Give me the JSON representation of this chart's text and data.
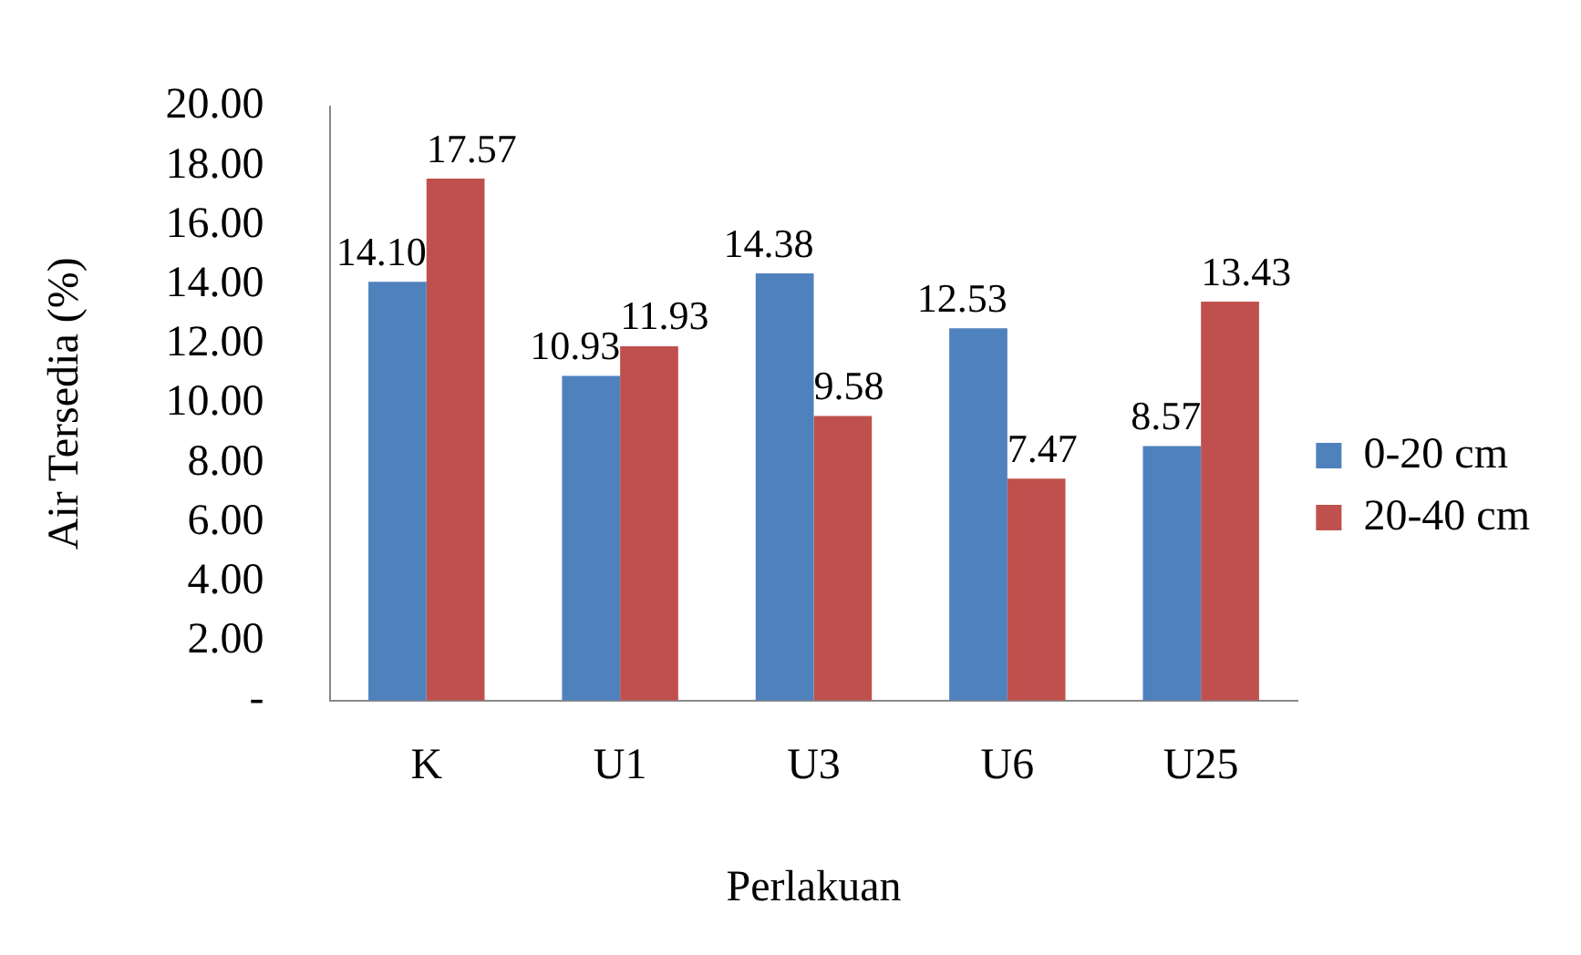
{
  "chart_data": {
    "type": "bar",
    "xlabel": "Perlakuan",
    "ylabel": "Air Tersedia (%)",
    "categories": [
      "K",
      "U1",
      "U3",
      "U6",
      "U25"
    ],
    "series": [
      {
        "name": "0-20 cm",
        "color": "#4f81bd",
        "values": [
          14.1,
          10.93,
          14.38,
          12.53,
          8.57
        ],
        "value_labels": [
          "14.10",
          "10.93",
          "14.38",
          "12.53",
          "8.57"
        ]
      },
      {
        "name": "20-40 cm",
        "color": "#c0504d",
        "values": [
          17.57,
          11.93,
          9.58,
          7.47,
          13.43
        ],
        "value_labels": [
          "17.57",
          "11.93",
          "9.58",
          "7.47",
          "13.43"
        ]
      }
    ],
    "ylim": [
      0,
      20
    ],
    "yticks": [
      {
        "value": 0,
        "label": "-"
      },
      {
        "value": 2,
        "label": "2.00"
      },
      {
        "value": 4,
        "label": "4.00"
      },
      {
        "value": 6,
        "label": "6.00"
      },
      {
        "value": 8,
        "label": "8.00"
      },
      {
        "value": 10,
        "label": "10.00"
      },
      {
        "value": 12,
        "label": "12.00"
      },
      {
        "value": 14,
        "label": "14.00"
      },
      {
        "value": 16,
        "label": "16.00"
      },
      {
        "value": 18,
        "label": "18.00"
      },
      {
        "value": 20,
        "label": "20.00"
      }
    ],
    "grid": false,
    "legend": "right"
  }
}
